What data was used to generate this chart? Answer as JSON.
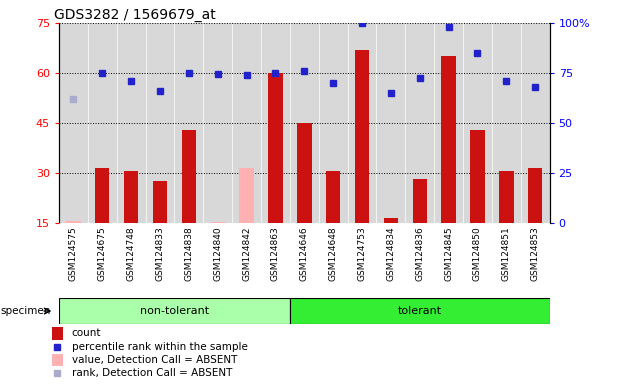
{
  "title": "GDS3282 / 1569679_at",
  "specimens": [
    "GSM124575",
    "GSM124675",
    "GSM124748",
    "GSM124833",
    "GSM124838",
    "GSM124840",
    "GSM124842",
    "GSM124863",
    "GSM124646",
    "GSM124648",
    "GSM124753",
    "GSM124834",
    "GSM124836",
    "GSM124845",
    "GSM124850",
    "GSM124851",
    "GSM124853"
  ],
  "groups": [
    {
      "label": "non-tolerant",
      "start": 0,
      "end": 7,
      "color": "#aaffaa"
    },
    {
      "label": "tolerant",
      "start": 8,
      "end": 16,
      "color": "#33ee33"
    }
  ],
  "bar_values": [
    15.5,
    31.5,
    30.5,
    27.5,
    43.0,
    15.2,
    31.5,
    60.0,
    45.0,
    30.5,
    67.0,
    16.5,
    28.0,
    65.0,
    43.0,
    30.5,
    31.5
  ],
  "absent_bar": [
    true,
    false,
    false,
    false,
    false,
    true,
    true,
    false,
    false,
    false,
    false,
    false,
    false,
    false,
    false,
    false,
    false
  ],
  "rank_values": [
    62.0,
    75.0,
    71.0,
    66.0,
    75.0,
    74.5,
    74.0,
    75.0,
    76.0,
    70.0,
    100.0,
    65.0,
    72.5,
    98.0,
    85.0,
    71.0,
    68.0
  ],
  "absent_rank": [
    true,
    false,
    false,
    false,
    false,
    false,
    false,
    false,
    false,
    false,
    false,
    false,
    false,
    false,
    false,
    false,
    false
  ],
  "ylim_left": [
    15,
    75
  ],
  "ylim_right": [
    0,
    100
  ],
  "yticks_left": [
    15,
    30,
    45,
    60,
    75
  ],
  "yticks_right": [
    0,
    25,
    50,
    75,
    100
  ],
  "bar_color_normal": "#cc1111",
  "bar_color_absent": "#ffb0b0",
  "rank_color_normal": "#2222cc",
  "rank_color_absent": "#aaaacc",
  "bg_color": "#ffffff",
  "col_bg_color": "#d8d8d8",
  "specimen_label_fontsize": 6.5,
  "title_fontsize": 10,
  "legend_items": [
    {
      "color": "#cc1111",
      "type": "bar",
      "label": "count"
    },
    {
      "color": "#2222cc",
      "type": "square",
      "label": "percentile rank within the sample"
    },
    {
      "color": "#ffb0b0",
      "type": "bar",
      "label": "value, Detection Call = ABSENT"
    },
    {
      "color": "#aaaacc",
      "type": "square",
      "label": "rank, Detection Call = ABSENT"
    }
  ]
}
